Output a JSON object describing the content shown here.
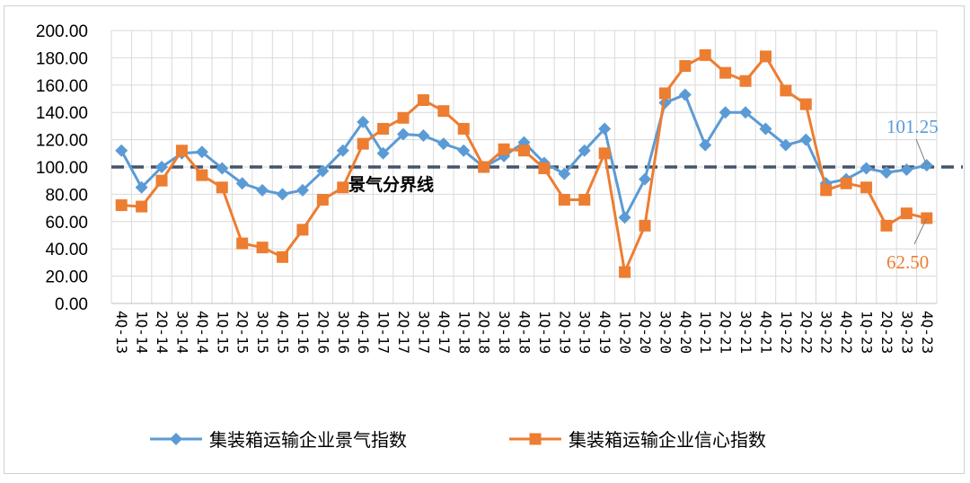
{
  "chart_data": {
    "type": "line",
    "title": "",
    "xlabel": "",
    "ylabel": "",
    "ylim": [
      0,
      200
    ],
    "yticks": [
      "0.00",
      "20.00",
      "40.00",
      "60.00",
      "80.00",
      "100.00",
      "120.00",
      "140.00",
      "160.00",
      "180.00",
      "200.00"
    ],
    "grid": true,
    "legend_position": "bottom",
    "categories": [
      "4Q-13",
      "1Q-14",
      "2Q-14",
      "3Q-14",
      "4Q-14",
      "1Q-15",
      "2Q-15",
      "3Q-15",
      "4Q-15",
      "1Q-16",
      "2Q-16",
      "3Q-16",
      "4Q-16",
      "1Q-17",
      "2Q-17",
      "3Q-17",
      "4Q-17",
      "1Q-18",
      "2Q-18",
      "3Q-18",
      "4Q-18",
      "1Q-19",
      "2Q-19",
      "3Q-19",
      "4Q-19",
      "1Q-20",
      "2Q-20",
      "3Q-20",
      "4Q-20",
      "1Q-21",
      "2Q-21",
      "3Q-21",
      "4Q-21",
      "1Q-22",
      "2Q-22",
      "3Q-22",
      "4Q-22",
      "1Q-23",
      "2Q-23",
      "3Q-23",
      "4Q-23"
    ],
    "series": [
      {
        "name": "集装箱运输企业景气指数",
        "color": "#5b9bd5",
        "marker": "diamond",
        "values": [
          112,
          85,
          100,
          110,
          111,
          99,
          88,
          83,
          80,
          83,
          97,
          112,
          133,
          110,
          124,
          123,
          117,
          112,
          100,
          108,
          118,
          103,
          95,
          112,
          128,
          63,
          91,
          147,
          153,
          116,
          140,
          140,
          128,
          116,
          120,
          88,
          91,
          99,
          96,
          98,
          101.25
        ]
      },
      {
        "name": "集装箱运输企业信心指数",
        "color": "#ed7d31",
        "marker": "square",
        "values": [
          72,
          71,
          90,
          112,
          94,
          85,
          44,
          41,
          34,
          54,
          76,
          85,
          117,
          128,
          136,
          149,
          141,
          128,
          100,
          113,
          112,
          99,
          76,
          76,
          110,
          23,
          57,
          154,
          174,
          182,
          169,
          163,
          181,
          156,
          146,
          83,
          88,
          85,
          57,
          66,
          62.5
        ]
      }
    ],
    "threshold": {
      "value": 100,
      "label": "景气分界线"
    },
    "annotations": [
      {
        "text": "101.25",
        "series": 0,
        "color": "#5b9bd5"
      },
      {
        "text": "62.50",
        "series": 1,
        "color": "#ed7d31"
      }
    ]
  }
}
